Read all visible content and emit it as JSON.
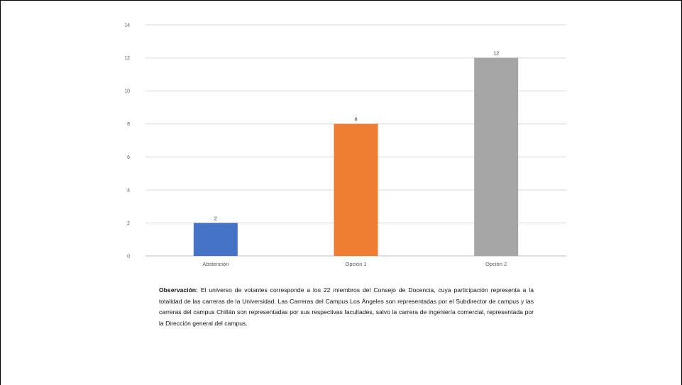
{
  "chart_data": {
    "type": "bar",
    "categories": [
      "Abstención",
      "Opción 1",
      "Opción 2"
    ],
    "values": [
      2,
      8,
      12
    ],
    "data_labels": [
      "2",
      "8",
      "12"
    ],
    "colors": [
      "#4472C4",
      "#ED7D31",
      "#A5A5A5"
    ],
    "ylim": [
      0,
      14
    ],
    "yticks": [
      0,
      2,
      4,
      6,
      8,
      10,
      12,
      14
    ],
    "ytick_labels": [
      "0",
      "2",
      "4",
      "6",
      "8",
      "10",
      "12",
      "14"
    ],
    "grid": true,
    "legend": "none",
    "title": "",
    "xlabel": "",
    "ylabel": ""
  },
  "note": {
    "label": "Observación:",
    "text": " El universo de votantes corresponde a los 22 miembros del Consejo de Docencia, cuya participación representa a la totalidad de las carreras de la Universidad. Las Carreras del Campus Los Ángeles son representadas por el Subdirector de campus y las carreras del campus Chillán son representadas por sus respectivas facultades, salvo la carrera de ingeniería comercial, representada por la Dirección general del campus."
  }
}
